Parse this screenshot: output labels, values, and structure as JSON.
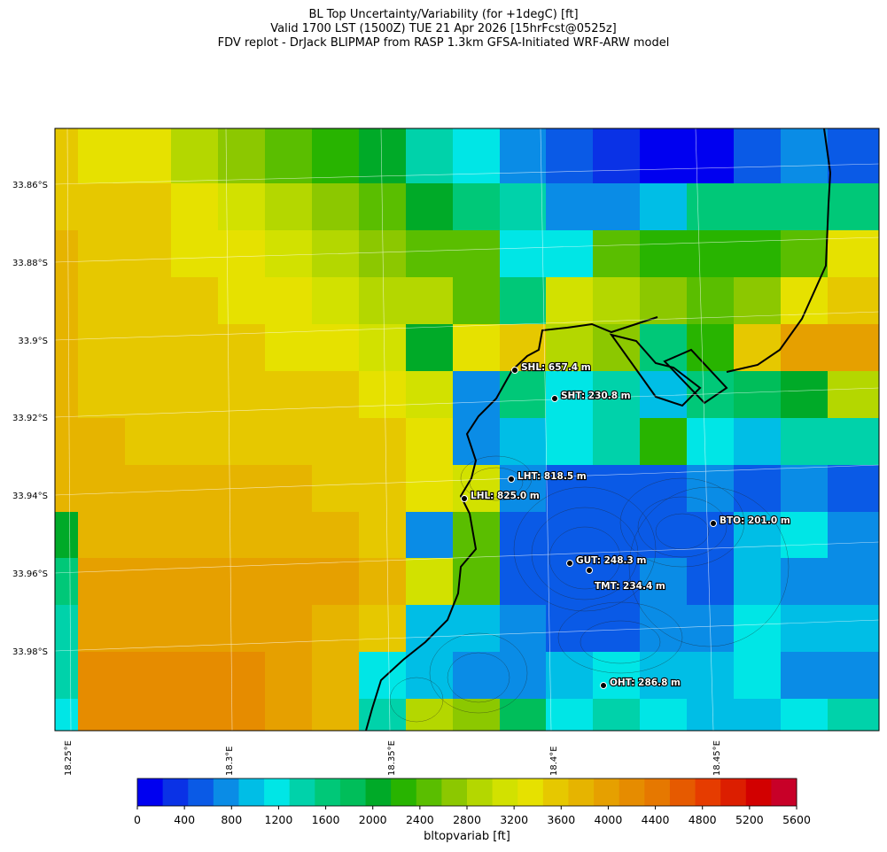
{
  "title_lines": [
    "BL Top Uncertainty/Variability (for +1degC) [ft]",
    "Valid 1700 LST (1500Z) TUE 21 Apr 2026 [15hrFcst@0525z]",
    "FDV replot - DrJack BLIPMAP from RASP 1.3km GFSA-Initiated WRF-ARW model"
  ],
  "lat_labels": [
    "33.86°S",
    "33.88°S",
    "33.9°S",
    "33.92°S",
    "33.94°S",
    "33.96°S",
    "33.98°S"
  ],
  "lon_labels": [
    "18.25°E",
    "18.3°E",
    "18.35°E",
    "18.4°E",
    "18.45°E"
  ],
  "stations": [
    {
      "label": "SHL: 657.4 m"
    },
    {
      "label": "SHT: 230.8 m"
    },
    {
      "label": "LHT: 818.5 m"
    },
    {
      "label": "LHL: 825.0 m"
    },
    {
      "label": "BTO: 201.0 m"
    },
    {
      "label": "GUT: 248.3 m"
    },
    {
      "label": "TMT: 234.4 m"
    },
    {
      "label": "OHT: 286.8 m"
    }
  ],
  "colorbar": {
    "label": "bltopvariab [ft]",
    "ticks": [
      "0",
      "400",
      "800",
      "1200",
      "1600",
      "2000",
      "2400",
      "2800",
      "3200",
      "3600",
      "4000",
      "4400",
      "4800",
      "5200",
      "5600"
    ],
    "colors": [
      "#0000f0",
      "#0a32e6",
      "#0a5ae6",
      "#0a8ce6",
      "#00bee6",
      "#00e6e6",
      "#00d2aa",
      "#00c878",
      "#00be5a",
      "#00aa28",
      "#28b400",
      "#5abe00",
      "#8cc800",
      "#b4d700",
      "#d2e100",
      "#e6e100",
      "#e6c800",
      "#e6b400",
      "#e6a000",
      "#e68c00",
      "#e67800",
      "#e65a00",
      "#e63c00",
      "#dc1e00",
      "#d20000",
      "#c80028"
    ]
  }
}
